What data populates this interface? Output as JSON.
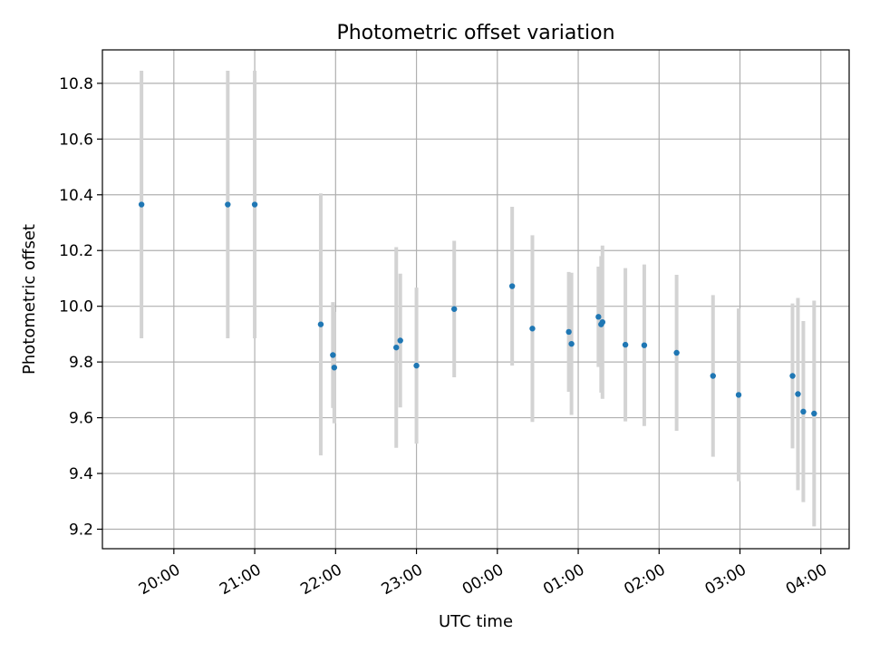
{
  "chart_data": {
    "type": "scatter",
    "title": "Photometric offset variation",
    "xlabel": "UTC time",
    "ylabel": "Photometric offset",
    "x_ticks": [
      "20:00",
      "21:00",
      "22:00",
      "23:00",
      "00:00",
      "01:00",
      "02:00",
      "03:00",
      "04:00"
    ],
    "y_ticks": [
      "9.2",
      "9.4",
      "9.6",
      "9.8",
      "10.0",
      "10.2",
      "10.4",
      "10.6",
      "10.8"
    ],
    "xlim": [
      "19:07",
      "04:21"
    ],
    "ylim": [
      9.13,
      10.92
    ],
    "grid": true,
    "marker_color": "#1f77b4",
    "errorbar_color": "#d3d3d3",
    "points": [
      {
        "time": "19:36",
        "y": 10.365,
        "yerr": 0.48
      },
      {
        "time": "20:40",
        "y": 10.365,
        "yerr": 0.48
      },
      {
        "time": "21:00",
        "y": 10.365,
        "yerr": 0.48
      },
      {
        "time": "21:49",
        "y": 9.935,
        "yerr": 0.47
      },
      {
        "time": "21:58",
        "y": 9.825,
        "yerr": 0.19
      },
      {
        "time": "21:59",
        "y": 9.78,
        "yerr": 0.2
      },
      {
        "time": "22:45",
        "y": 9.852,
        "yerr": 0.36
      },
      {
        "time": "22:48",
        "y": 9.877,
        "yerr": 0.24
      },
      {
        "time": "23:00",
        "y": 9.787,
        "yerr": 0.28
      },
      {
        "time": "23:28",
        "y": 9.99,
        "yerr": 0.245
      },
      {
        "time": "00:11",
        "y": 10.072,
        "yerr": 0.285
      },
      {
        "time": "00:26",
        "y": 9.92,
        "yerr": 0.335
      },
      {
        "time": "00:53",
        "y": 9.908,
        "yerr": 0.215
      },
      {
        "time": "00:55",
        "y": 9.865,
        "yerr": 0.255
      },
      {
        "time": "01:15",
        "y": 9.962,
        "yerr": 0.18
      },
      {
        "time": "01:17",
        "y": 9.935,
        "yerr": 0.245
      },
      {
        "time": "01:18",
        "y": 9.943,
        "yerr": 0.275
      },
      {
        "time": "01:35",
        "y": 9.862,
        "yerr": 0.275
      },
      {
        "time": "01:49",
        "y": 9.86,
        "yerr": 0.29
      },
      {
        "time": "02:13",
        "y": 9.833,
        "yerr": 0.28
      },
      {
        "time": "02:40",
        "y": 9.75,
        "yerr": 0.29
      },
      {
        "time": "02:59",
        "y": 9.682,
        "yerr": 0.31
      },
      {
        "time": "03:39",
        "y": 9.75,
        "yerr": 0.26
      },
      {
        "time": "03:43",
        "y": 9.685,
        "yerr": 0.345
      },
      {
        "time": "03:47",
        "y": 9.622,
        "yerr": 0.325
      },
      {
        "time": "03:55",
        "y": 9.615,
        "yerr": 0.405
      }
    ]
  }
}
